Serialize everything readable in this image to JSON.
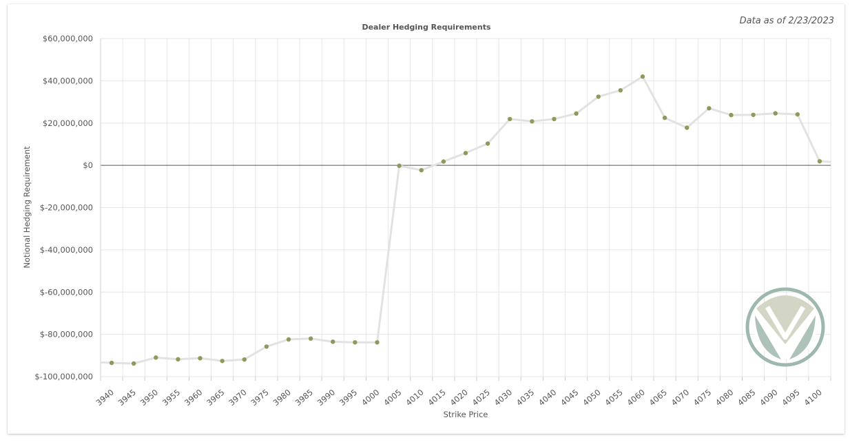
{
  "as_of_text": "Data as of 2/23/2023",
  "colors": {
    "line": "#e2e2e2",
    "marker": "#8c9a5b",
    "zero_line": "#555555",
    "grid": "#e6e6e6",
    "logo_outer": "#9fb8ad",
    "logo_light": "#d3d6c4",
    "logo_dark": "#9fb8ad"
  },
  "logo": {
    "icon": "v-shield-logo-icon"
  },
  "chart_data": {
    "type": "line",
    "title": "Dealer Hedging Requirements",
    "xlabel": "Strike Price",
    "ylabel": "Notional Hedging Requirement",
    "ylim": [
      -100000000,
      60000000
    ],
    "yticks": [
      60000000,
      40000000,
      20000000,
      0,
      -20000000,
      -40000000,
      -60000000,
      -80000000,
      -100000000
    ],
    "ytick_labels": [
      "$60,000,000",
      "$40,000,000",
      "$20,000,000",
      "$0",
      "$-20,000,000",
      "$-40,000,000",
      "$-60,000,000",
      "$-80,000,000",
      "$-100,000,000"
    ],
    "categories": [
      "3940",
      "3945",
      "3950",
      "3955",
      "3960",
      "3965",
      "3970",
      "3975",
      "3980",
      "3985",
      "3990",
      "3995",
      "4000",
      "4005",
      "4010",
      "4015",
      "4020",
      "4025",
      "4030",
      "4035",
      "4040",
      "4045",
      "4050",
      "4055",
      "4060",
      "4065",
      "4070",
      "4075",
      "4080",
      "4085",
      "4090",
      "4095",
      "4100"
    ],
    "values": [
      -93500000,
      -93800000,
      -91000000,
      -91800000,
      -91300000,
      -92600000,
      -91900000,
      -85800000,
      -82400000,
      -82000000,
      -83500000,
      -83800000,
      -83800000,
      -200000,
      -2300000,
      1800000,
      5800000,
      10300000,
      21900000,
      20800000,
      21900000,
      24500000,
      32500000,
      35500000,
      42000000,
      22500000,
      17800000,
      27000000,
      23800000,
      23900000,
      24600000,
      24100000,
      1900000
    ],
    "edge_values": {
      "left": -93300000,
      "right": 1600000
    },
    "grid": true,
    "legend": "none"
  }
}
